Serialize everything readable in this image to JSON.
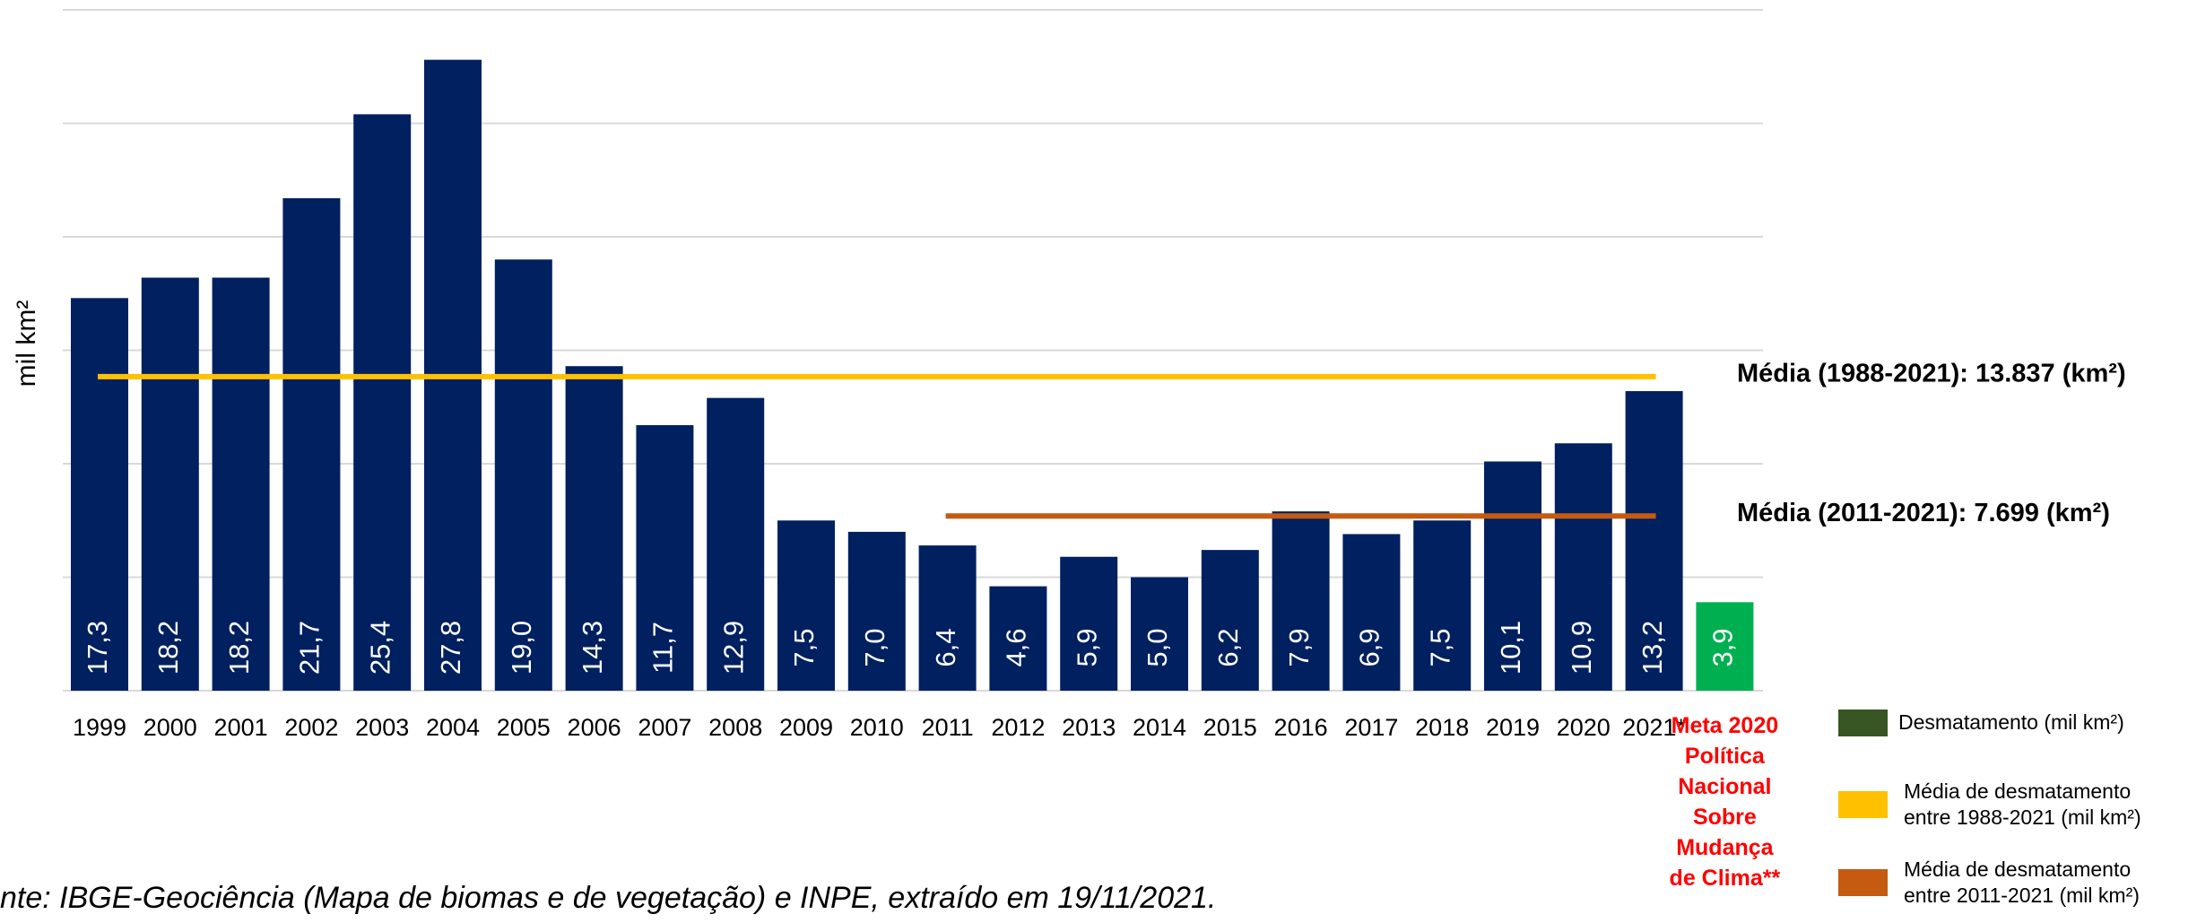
{
  "chart_data": {
    "type": "bar",
    "y_label": "mil km²",
    "categories": [
      "1999",
      "2000",
      "2001",
      "2002",
      "2003",
      "2004",
      "2005",
      "2006",
      "2007",
      "2008",
      "2009",
      "2010",
      "2011",
      "2012",
      "2013",
      "2014",
      "2015",
      "2016",
      "2017",
      "2018",
      "2019",
      "2020",
      "2021*",
      "Meta 2020 Política Nacional Sobre Mudança de Clima**"
    ],
    "values": [
      17.3,
      18.2,
      18.2,
      21.7,
      25.4,
      27.8,
      19.0,
      14.3,
      11.7,
      12.9,
      7.5,
      7.0,
      6.4,
      4.6,
      5.9,
      5.0,
      6.2,
      7.9,
      6.9,
      7.5,
      10.1,
      10.9,
      13.2,
      3.9
    ],
    "value_labels": [
      "17,3",
      "18,2",
      "18,2",
      "21,7",
      "25,4",
      "27,8",
      "19,0",
      "14,3",
      "11,7",
      "12,9",
      "7,5",
      "7,0",
      "6,4",
      "4,6",
      "5,9",
      "5,0",
      "6,2",
      "7,9",
      "6,9",
      "7,5",
      "10,1",
      "10,9",
      "13,2",
      "3,9"
    ],
    "colors": [
      "#002060",
      "#002060",
      "#002060",
      "#002060",
      "#002060",
      "#002060",
      "#002060",
      "#002060",
      "#002060",
      "#002060",
      "#002060",
      "#002060",
      "#002060",
      "#002060",
      "#002060",
      "#002060",
      "#002060",
      "#002060",
      "#002060",
      "#002060",
      "#002060",
      "#002060",
      "#002060",
      "#00b050"
    ],
    "ylim": [
      0,
      30
    ],
    "yticks": [
      0,
      5,
      10,
      15,
      20,
      25,
      30
    ],
    "grid": true,
    "reference_lines": [
      {
        "value": 13.837,
        "from": "1999",
        "to": "2021*",
        "color": "#ffc000",
        "label": "Média (1988-2021): 13.837 (km²)"
      },
      {
        "value": 7.699,
        "from": "2011",
        "to": "2021*",
        "color": "#c55a11",
        "label": "Média (2011-2021): 7.699 (km²)"
      }
    ],
    "legend": [
      {
        "name": "Desmatamento (mil km²)",
        "color": "#375623"
      },
      {
        "name": "Média de desmatamento entre 1988-2021 (mil km²)",
        "color": "#ffc000"
      },
      {
        "name": "Média de desmatamento entre 2011-2021 (mil km²)",
        "color": "#c55a11"
      }
    ],
    "source": "nte: IBGE-Geociência (Mapa de biomas e de vegetação) e INPE, extraído em 19/11/2021."
  }
}
